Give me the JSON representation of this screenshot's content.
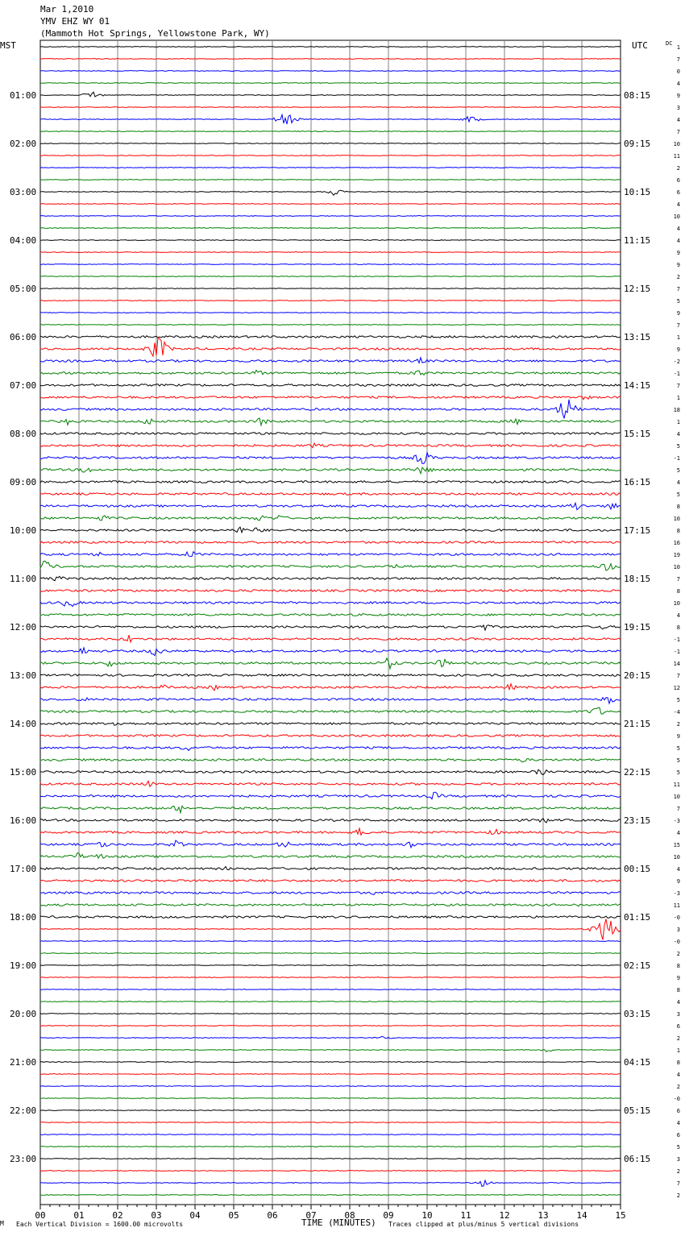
{
  "header": {
    "date": "Mar 1,2010",
    "station": "YMV EHZ WY 01",
    "location": "(Mammoth Hot Springs, Yellowstone Park, WY)"
  },
  "left_axis_title": "MST",
  "right_axis_title": "UTC",
  "dc_title": "DC",
  "footer": {
    "left_note": "Each Vertical Division = 1600.00 microvolts",
    "xlabel": "TIME (MINUTES)",
    "right_note": "Traces clipped at plus/minus 5 vertical divisions",
    "corner_mark": "M"
  },
  "colors": {
    "trace_cycle": [
      "#000000",
      "#ff0000",
      "#0000ff",
      "#008000"
    ],
    "grid": "#808080"
  },
  "chart_data": {
    "type": "line",
    "title": "YMV EHZ WY 01",
    "xlabel": "TIME (MINUTES)",
    "x_ticks": [
      "00",
      "01",
      "02",
      "03",
      "04",
      "05",
      "06",
      "07",
      "08",
      "09",
      "10",
      "11",
      "12",
      "13",
      "14",
      "15"
    ],
    "xlim": [
      0,
      15
    ],
    "rows_per_hour": 4,
    "total_rows": 96,
    "mst_labels": [
      "01:00",
      "02:00",
      "03:00",
      "04:00",
      "05:00",
      "06:00",
      "07:00",
      "08:00",
      "09:00",
      "10:00",
      "11:00",
      "12:00",
      "13:00",
      "14:00",
      "15:00",
      "16:00",
      "17:00",
      "18:00",
      "19:00",
      "20:00",
      "21:00",
      "22:00",
      "23:00"
    ],
    "utc_labels": [
      "08:15",
      "09:15",
      "10:15",
      "11:15",
      "12:15",
      "13:15",
      "14:15",
      "15:15",
      "16:15",
      "17:15",
      "18:15",
      "19:15",
      "20:15",
      "21:15",
      "22:15",
      "23:15",
      "00:15",
      "01:15",
      "02:15",
      "03:15",
      "04:15",
      "05:15",
      "06:15"
    ],
    "dc_offsets": [
      "1",
      "7",
      "0",
      "4",
      "9",
      "3",
      "4",
      "7",
      "10",
      "11",
      "2",
      "6",
      "6",
      "4",
      "10",
      "4",
      "4",
      "9",
      "9",
      "2",
      "7",
      "5",
      "9",
      "7",
      "1",
      "9",
      "-2",
      "-1",
      "7",
      "1",
      "18",
      "1",
      "4",
      "5",
      "-1",
      "5",
      "4",
      "5",
      "8",
      "10",
      "8",
      "16",
      "19",
      "10",
      "7",
      "8",
      "10",
      "4",
      "8",
      "-1",
      "-1",
      "14",
      "7",
      "12",
      "5",
      "-4",
      "2",
      "9",
      "5",
      "5",
      "5",
      "11",
      "10",
      "7",
      "-3",
      "4",
      "15",
      "10",
      "4",
      "9",
      "-3",
      "11",
      "-0",
      "3",
      "-0",
      "2",
      "8",
      "9",
      "8",
      "4",
      "3",
      "6",
      "2",
      "1",
      "8",
      "4",
      "2",
      "-0",
      "6",
      "4",
      "6",
      "5",
      "3",
      "2",
      "7",
      "2"
    ],
    "series": [
      {
        "color": "black",
        "rows": [
          0,
          4,
          8,
          12,
          16,
          20,
          24,
          28,
          32,
          36,
          40,
          44,
          48,
          52,
          56,
          60,
          64,
          68,
          72,
          76,
          80,
          84,
          88,
          92
        ]
      },
      {
        "color": "red",
        "rows": [
          1,
          5,
          9,
          13,
          17,
          21,
          25,
          29,
          33,
          37,
          41,
          45,
          49,
          53,
          57,
          61,
          65,
          69,
          73,
          77,
          81,
          85,
          89,
          93
        ]
      },
      {
        "color": "blue",
        "rows": [
          2,
          6,
          10,
          14,
          18,
          22,
          26,
          30,
          34,
          38,
          42,
          46,
          50,
          54,
          58,
          62,
          66,
          70,
          74,
          78,
          82,
          86,
          90,
          94
        ]
      },
      {
        "color": "green",
        "rows": [
          3,
          7,
          11,
          15,
          19,
          23,
          27,
          31,
          35,
          39,
          43,
          47,
          51,
          55,
          59,
          63,
          67,
          71,
          75,
          79,
          83,
          87,
          91,
          95
        ]
      }
    ],
    "activity": [
      {
        "row": 0,
        "min": 8.4,
        "amp": 2
      },
      {
        "row": 4,
        "min": 1.35,
        "amp": 6
      },
      {
        "row": 6,
        "min": 6.35,
        "amp": 12
      },
      {
        "row": 6,
        "min": 11.15,
        "amp": 6
      },
      {
        "row": 12,
        "min": 7.6,
        "amp": 5
      },
      {
        "row": 25,
        "min": 3.05,
        "amp": 22
      },
      {
        "row": 26,
        "min": 9.85,
        "amp": 5
      },
      {
        "row": 27,
        "min": 5.6,
        "amp": 5
      },
      {
        "row": 27,
        "min": 9.8,
        "amp": 6
      },
      {
        "row": 29,
        "min": 14.1,
        "amp": 4
      },
      {
        "row": 30,
        "min": 13.6,
        "amp": 20
      },
      {
        "row": 31,
        "min": 0.7,
        "amp": 5
      },
      {
        "row": 31,
        "min": 2.8,
        "amp": 6
      },
      {
        "row": 31,
        "min": 5.75,
        "amp": 7
      },
      {
        "row": 31,
        "min": 12.3,
        "amp": 5
      },
      {
        "row": 33,
        "min": 7.1,
        "amp": 4
      },
      {
        "row": 34,
        "min": 9.9,
        "amp": 12
      },
      {
        "row": 35,
        "min": 1.2,
        "amp": 6
      },
      {
        "row": 35,
        "min": 9.9,
        "amp": 8
      },
      {
        "row": 38,
        "min": 13.85,
        "amp": 7
      },
      {
        "row": 38,
        "min": 14.8,
        "amp": 6
      },
      {
        "row": 39,
        "min": 1.6,
        "amp": 5
      },
      {
        "row": 39,
        "min": 5.7,
        "amp": 6
      },
      {
        "row": 39,
        "min": 6.2,
        "amp": 5
      },
      {
        "row": 40,
        "min": 5.15,
        "amp": 6
      },
      {
        "row": 40,
        "min": 5.65,
        "amp": 5
      },
      {
        "row": 42,
        "min": 1.5,
        "amp": 4
      },
      {
        "row": 42,
        "min": 3.9,
        "amp": 6
      },
      {
        "row": 43,
        "min": 0.15,
        "amp": 10
      },
      {
        "row": 43,
        "min": 9.1,
        "amp": 5
      },
      {
        "row": 43,
        "min": 14.65,
        "amp": 8
      },
      {
        "row": 44,
        "min": 0.45,
        "amp": 5
      },
      {
        "row": 46,
        "min": 0.75,
        "amp": 9
      },
      {
        "row": 48,
        "min": 11.5,
        "amp": 5
      },
      {
        "row": 48,
        "min": 14.5,
        "amp": 4
      },
      {
        "row": 49,
        "min": 2.3,
        "amp": 6
      },
      {
        "row": 49,
        "min": 8.6,
        "amp": 4
      },
      {
        "row": 50,
        "min": 1.1,
        "amp": 6
      },
      {
        "row": 50,
        "min": 3.0,
        "amp": 8
      },
      {
        "row": 51,
        "min": 1.8,
        "amp": 6
      },
      {
        "row": 51,
        "min": 9.0,
        "amp": 9
      },
      {
        "row": 51,
        "min": 10.4,
        "amp": 7
      },
      {
        "row": 53,
        "min": 3.2,
        "amp": 4
      },
      {
        "row": 53,
        "min": 4.5,
        "amp": 4
      },
      {
        "row": 53,
        "min": 12.15,
        "amp": 5
      },
      {
        "row": 54,
        "min": 1.1,
        "amp": 4
      },
      {
        "row": 54,
        "min": 14.7,
        "amp": 7
      },
      {
        "row": 55,
        "min": 14.4,
        "amp": 8
      },
      {
        "row": 56,
        "min": 2.0,
        "amp": 5
      },
      {
        "row": 58,
        "min": 3.8,
        "amp": 5
      },
      {
        "row": 59,
        "min": 12.5,
        "amp": 4
      },
      {
        "row": 60,
        "min": 12.9,
        "amp": 8
      },
      {
        "row": 61,
        "min": 2.8,
        "amp": 5
      },
      {
        "row": 62,
        "min": 10.2,
        "amp": 6
      },
      {
        "row": 63,
        "min": 3.6,
        "amp": 7
      },
      {
        "row": 64,
        "min": 13.0,
        "amp": 5
      },
      {
        "row": 65,
        "min": 8.3,
        "amp": 7
      },
      {
        "row": 65,
        "min": 11.75,
        "amp": 5
      },
      {
        "row": 66,
        "min": 1.6,
        "amp": 6
      },
      {
        "row": 66,
        "min": 3.55,
        "amp": 7
      },
      {
        "row": 66,
        "min": 6.3,
        "amp": 6
      },
      {
        "row": 66,
        "min": 9.55,
        "amp": 5
      },
      {
        "row": 67,
        "min": 0.95,
        "amp": 6
      },
      {
        "row": 67,
        "min": 1.5,
        "amp": 5
      },
      {
        "row": 68,
        "min": 4.8,
        "amp": 3
      },
      {
        "row": 70,
        "min": 8.6,
        "amp": 3
      },
      {
        "row": 71,
        "min": 13.9,
        "amp": 3
      },
      {
        "row": 73,
        "min": 14.6,
        "amp": 30
      },
      {
        "row": 82,
        "min": 8.85,
        "amp": 3
      },
      {
        "row": 83,
        "min": 13.1,
        "amp": 3
      },
      {
        "row": 94,
        "min": 11.4,
        "amp": 6
      }
    ]
  }
}
